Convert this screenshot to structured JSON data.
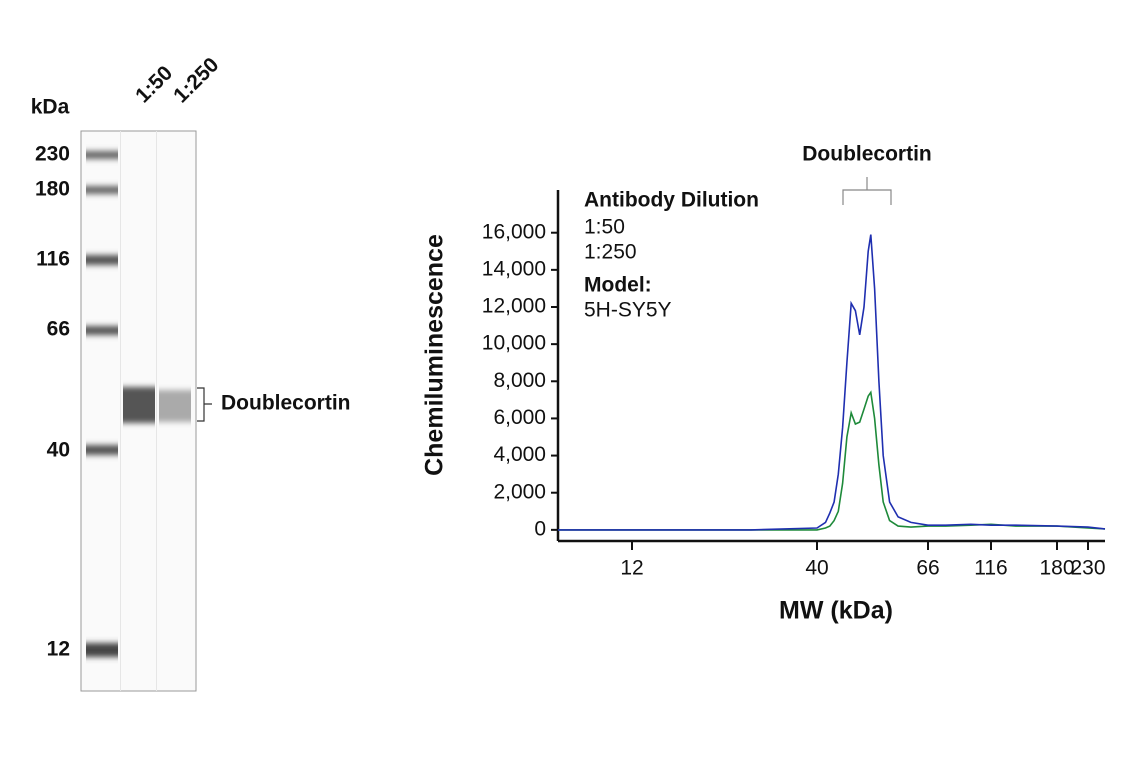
{
  "blot": {
    "unit_label": "kDa",
    "lanes": [
      "1:50",
      "1:250"
    ],
    "markers": [
      230,
      180,
      116,
      66,
      40,
      12
    ],
    "band_label": "Doublecortin"
  },
  "chart_data": {
    "type": "line",
    "ylabel": "Chemiluminescence",
    "xlabel": "MW (kDa)",
    "annotation": "Doublecortin",
    "legend_title": "Antibody Dilution",
    "model_label": "Model:",
    "model": "5H-SY5Y",
    "x": [
      1,
      12,
      30,
      40,
      42,
      43,
      44,
      45,
      46,
      47,
      48,
      49,
      50,
      51,
      52,
      52.6,
      53.5,
      54.5,
      55.5,
      57,
      59,
      62,
      66,
      80,
      100,
      116,
      140,
      180,
      230,
      260
    ],
    "series": [
      {
        "name": "1:50",
        "color": "#1f2fb0",
        "values": [
          0,
          0,
          0,
          100,
          400,
          900,
          1500,
          3000,
          5500,
          9000,
          12200,
          11800,
          10500,
          12000,
          15000,
          15900,
          13000,
          8000,
          4000,
          1500,
          700,
          400,
          250,
          250,
          300,
          250,
          250,
          200,
          150,
          50
        ]
      },
      {
        "name": "1:250",
        "color": "#1e8a3a",
        "values": [
          0,
          0,
          0,
          0,
          100,
          200,
          500,
          1000,
          2500,
          5000,
          6300,
          5700,
          5800,
          6500,
          7200,
          7400,
          6000,
          3500,
          1500,
          500,
          200,
          150,
          200,
          200,
          250,
          300,
          200,
          200,
          100,
          50
        ]
      }
    ],
    "xlim": [
      1,
      260
    ],
    "xticks": [
      12,
      40,
      66,
      116,
      180,
      230
    ],
    "ylim": [
      -600,
      18300
    ],
    "yticks": [
      0,
      {
        "value": 2000,
        "label": "2,000"
      },
      {
        "value": 4000,
        "label": "4,000"
      },
      {
        "value": 6000,
        "label": "6,000"
      },
      {
        "value": 8000,
        "label": "8,000"
      },
      {
        "value": 10000,
        "label": "10,000"
      },
      {
        "value": 12000,
        "label": "12,000"
      },
      {
        "value": 14000,
        "label": "14,000"
      },
      {
        "value": 16000,
        "label": "16,000"
      }
    ],
    "grid": false
  }
}
